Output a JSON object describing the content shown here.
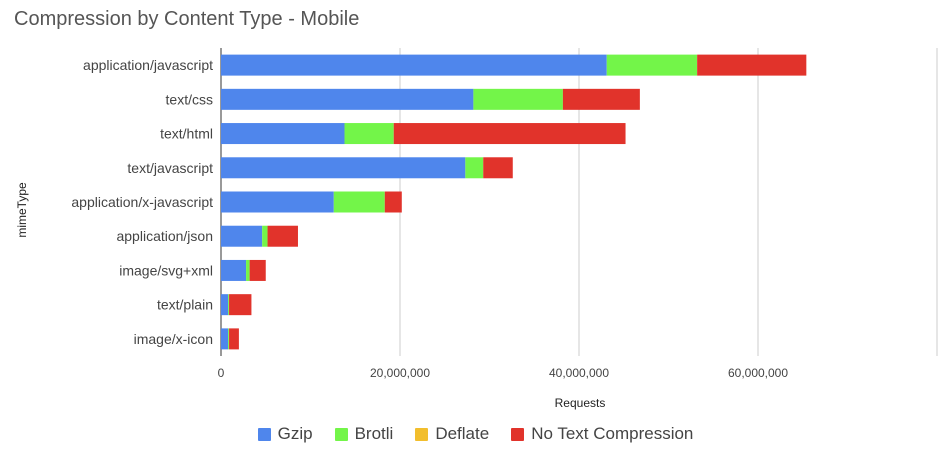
{
  "chart_data": {
    "type": "bar",
    "orientation": "horizontal",
    "stacked": true,
    "title": "Compression by Content Type - Mobile",
    "xlabel": "Requests",
    "ylabel": "mimeType",
    "xlim": [
      0,
      80000000
    ],
    "xticks": [
      0,
      20000000,
      40000000,
      60000000
    ],
    "xtick_labels": [
      "0",
      "20,000,000",
      "40,000,000",
      "60,000,000"
    ],
    "grid": true,
    "legend_position": "bottom",
    "categories": [
      "application/javascript",
      "text/css",
      "text/html",
      "text/javascript",
      "application/x-javascript",
      "application/json",
      "image/svg+xml",
      "text/plain",
      "image/x-icon"
    ],
    "series": [
      {
        "name": "Gzip",
        "color": "#4f86ec",
        "values": [
          43100000,
          28200000,
          13800000,
          27300000,
          12600000,
          4600000,
          2800000,
          800000,
          800000
        ]
      },
      {
        "name": "Brotli",
        "color": "#73f549",
        "values": [
          10100000,
          10000000,
          5500000,
          2000000,
          5700000,
          600000,
          400000,
          100000,
          100000
        ]
      },
      {
        "name": "Deflate",
        "color": "#f2be2d",
        "values": [
          0,
          0,
          0,
          0,
          0,
          0,
          0,
          0,
          0
        ]
      },
      {
        "name": "No Text Compression",
        "color": "#e1332b",
        "values": [
          12200000,
          8600000,
          25900000,
          3300000,
          1900000,
          3400000,
          1800000,
          2500000,
          1100000
        ]
      }
    ]
  }
}
